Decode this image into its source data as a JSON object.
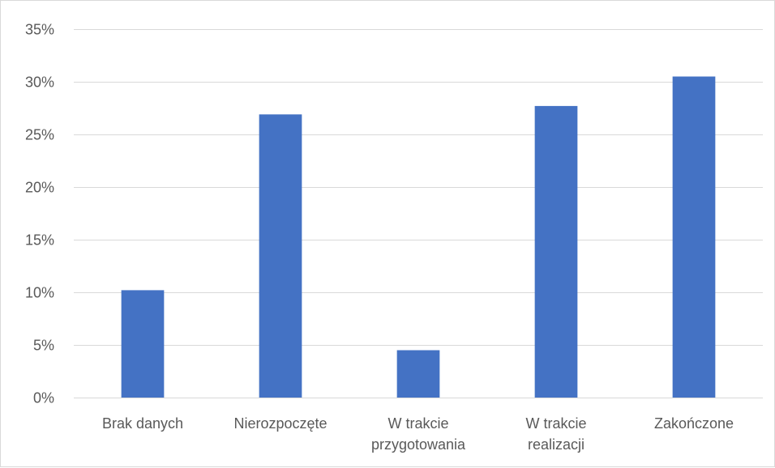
{
  "chart_data": {
    "type": "bar",
    "title": "",
    "xlabel": "",
    "ylabel": "",
    "categories": [
      [
        "Brak danych"
      ],
      [
        "Nierozpoczęte"
      ],
      [
        "W trakcie",
        "przygotowania"
      ],
      [
        "W trakcie",
        "realizacji"
      ],
      [
        "Zakończone"
      ]
    ],
    "values": [
      0.102,
      0.269,
      0.045,
      0.277,
      0.305
    ],
    "ylim": [
      0,
      0.35
    ],
    "yticks": [
      0,
      0.05,
      0.1,
      0.15,
      0.2,
      0.25,
      0.3,
      0.35
    ],
    "ytick_labels": [
      "0%",
      "5%",
      "10%",
      "15%",
      "20%",
      "25%",
      "30%",
      "35%"
    ],
    "grid": true,
    "legend": "none",
    "colors": {
      "bar": "#4472c4",
      "grid": "#d9d9d9",
      "axis": "#d9d9d9",
      "text": "#595959"
    }
  }
}
